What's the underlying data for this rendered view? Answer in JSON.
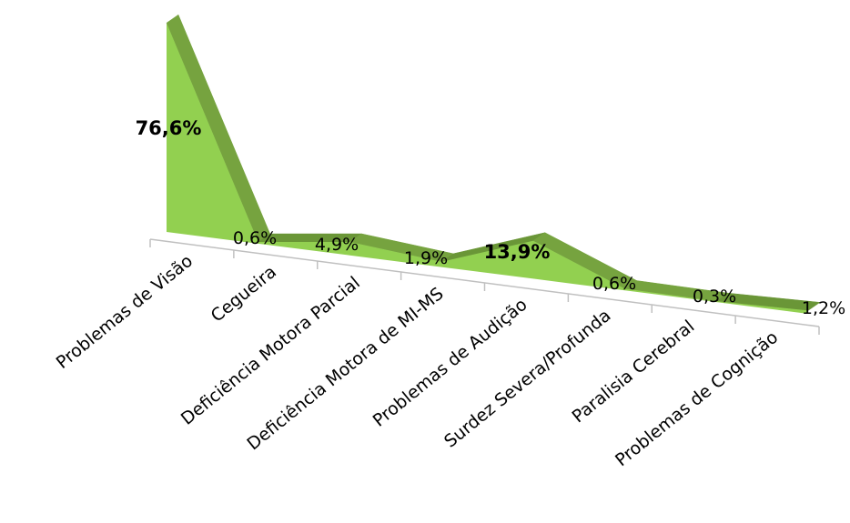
{
  "chart_data": {
    "type": "area",
    "three_d": true,
    "title": "",
    "xlabel": "",
    "ylabel": "",
    "categories": [
      "Problemas de Visão",
      "Cegueira",
      "Deficiência Motora Parcial",
      "Deficiência Motora de MI-MS",
      "Problemas de Audição",
      "Surdez Severa/Profunda",
      "Paralisia Cerebral",
      "Problemas de Cognição"
    ],
    "series": [
      {
        "values": [
          76.6,
          0.6,
          4.9,
          1.9,
          13.9,
          0.6,
          0.3,
          1.2
        ]
      }
    ],
    "data_labels": [
      "76,6%",
      "0,6%",
      "4,9%",
      "1,9%",
      "13,9%",
      "0,6%",
      "0,3%",
      "1,2%"
    ],
    "highlighted_labels": [
      0,
      4
    ],
    "value_unit": "%",
    "ylim": [
      0,
      80
    ],
    "legend": "none",
    "grid": false,
    "colors": {
      "front": "#92d050",
      "top": "#76a33f",
      "top_dark": "#6a9637",
      "axis": "#c0c0c0",
      "highlight": "#ff0000",
      "label": "#000000"
    }
  }
}
